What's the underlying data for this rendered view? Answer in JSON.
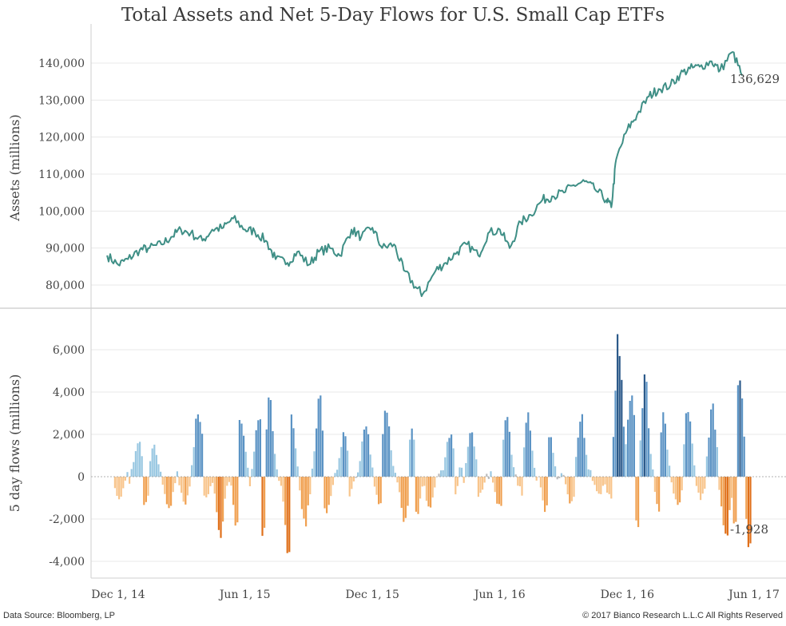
{
  "title": "Total Assets and Net 5-Day Flows for U.S. Small Cap ETFs",
  "source": "Data Source: Bloomberg, LP",
  "copyright": "© 2017 Bianco Research L.L.C  All Rights Reserved",
  "colors": {
    "assets_line": "#3f8f86",
    "inflow_light": "#9ac8e2",
    "inflow_mid": "#5b93c4",
    "inflow_dark": "#2c5a8a",
    "outflow_light": "#f8c58c",
    "outflow_mid": "#f0a050",
    "outflow_dark": "#e0701a",
    "neutral": "#bbbbbb",
    "grid": "#e8e8e8"
  },
  "chart_data": [
    {
      "type": "line",
      "ylabel": "Assets (millions)",
      "ylim": [
        75000,
        146000
      ],
      "yticks": [
        "140,000",
        "130,000",
        "120,000",
        "110,000",
        "100,000",
        "90,000",
        "80,000"
      ],
      "ytick_values": [
        140000,
        130000,
        120000,
        110000,
        100000,
        90000,
        80000
      ],
      "end_label": "136,629",
      "series": [
        {
          "x": [
            "2014-11-15",
            "2014-12-01",
            "2014-12-15",
            "2015-01-01",
            "2015-01-15",
            "2015-02-01",
            "2015-02-15",
            "2015-03-01",
            "2015-03-15",
            "2015-04-01",
            "2015-04-15",
            "2015-05-01",
            "2015-05-15",
            "2015-06-01",
            "2015-06-15",
            "2015-07-01",
            "2015-07-15",
            "2015-08-01",
            "2015-08-15",
            "2015-09-01",
            "2015-09-15",
            "2015-10-01",
            "2015-10-15",
            "2015-11-01",
            "2015-11-15",
            "2015-12-01",
            "2015-12-15",
            "2016-01-01",
            "2016-01-15",
            "2016-02-01",
            "2016-02-11",
            "2016-03-01",
            "2016-03-15",
            "2016-04-01",
            "2016-04-15",
            "2016-05-01",
            "2016-05-15",
            "2016-06-01",
            "2016-06-15",
            "2016-07-01",
            "2016-07-15",
            "2016-08-01",
            "2016-08-15",
            "2016-09-01",
            "2016-09-15",
            "2016-10-01",
            "2016-10-15",
            "2016-11-01",
            "2016-11-08",
            "2016-11-15",
            "2016-12-01",
            "2016-12-15",
            "2017-01-01",
            "2017-01-15",
            "2017-02-01",
            "2017-02-15",
            "2017-03-01",
            "2017-03-15",
            "2017-04-01",
            "2017-04-13",
            "2017-05-01",
            "2017-05-15"
          ],
          "values": [
            88000,
            85500,
            87000,
            89500,
            90000,
            91000,
            93000,
            95000,
            94000,
            92000,
            95000,
            95500,
            98000,
            95000,
            94500,
            92000,
            87000,
            86000,
            89000,
            85500,
            89000,
            90000,
            88000,
            95000,
            93000,
            95500,
            90000,
            91000,
            84000,
            79500,
            77500,
            84000,
            86000,
            89000,
            91000,
            88000,
            94000,
            95000,
            90000,
            97000,
            99000,
            103000,
            104000,
            105000,
            107000,
            108000,
            106000,
            103000,
            101000,
            114000,
            122000,
            126000,
            131000,
            133000,
            134000,
            137000,
            138500,
            139000,
            140500,
            138000,
            143000,
            136629
          ]
        }
      ]
    },
    {
      "type": "bar",
      "ylabel": "5 day flows (millions)",
      "ylim": [
        -4500,
        7000
      ],
      "yticks": [
        "6,000",
        "4,000",
        "2,000",
        "0",
        "-2,000",
        "-4,000"
      ],
      "ytick_values": [
        6000,
        4000,
        2000,
        0,
        -2000,
        -4000
      ],
      "end_label": "-1,928",
      "x_tick_labels": [
        "Dec 1, 14",
        "Jun 1, 15",
        "Dec 1, 15",
        "Jun 1, 16",
        "Dec 1, 16",
        "Jun 1, 17"
      ],
      "x_tick_dates": [
        "2014-12-01",
        "2015-06-01",
        "2015-12-01",
        "2016-06-01",
        "2016-12-01",
        "2017-06-01"
      ],
      "inflow_peaks": {
        "x": [
          "2014-12-28",
          "2015-01-20",
          "2015-03-25",
          "2015-05-25",
          "2015-06-20",
          "2015-07-05",
          "2015-08-05",
          "2015-09-15",
          "2015-10-20",
          "2015-11-20",
          "2015-12-20",
          "2016-01-25",
          "2016-03-20",
          "2016-04-20",
          "2016-06-10",
          "2016-07-10",
          "2016-08-10",
          "2016-09-25",
          "2016-11-18",
          "2016-12-05",
          "2016-12-25",
          "2017-01-20",
          "2017-02-25",
          "2017-04-01",
          "2017-05-10"
        ],
        "values": [
          1700,
          1500,
          3300,
          2700,
          3200,
          3500,
          2700,
          3600,
          2100,
          2600,
          3400,
          2300,
          2100,
          2100,
          2700,
          2700,
          2000,
          2900,
          6600,
          4000,
          4700,
          2700,
          3100,
          3500,
          4300
        ]
      },
      "outflow_troughs": {
        "x": [
          "2014-12-01",
          "2015-01-08",
          "2015-02-10",
          "2015-03-05",
          "2015-04-05",
          "2015-04-25",
          "2015-05-20",
          "2015-06-25",
          "2015-08-01",
          "2015-08-25",
          "2015-09-25",
          "2015-10-25",
          "2015-12-10",
          "2016-01-15",
          "2016-02-01",
          "2016-02-20",
          "2016-03-25",
          "2016-05-01",
          "2016-05-30",
          "2016-07-05",
          "2016-08-05",
          "2016-09-10",
          "2016-10-20",
          "2016-11-05",
          "2016-12-15",
          "2017-01-15",
          "2017-02-10",
          "2017-03-15",
          "2017-04-20",
          "2017-05-05",
          "2017-05-25"
        ],
        "values": [
          -1000,
          -1300,
          -1700,
          -1200,
          -1000,
          -3100,
          -2500,
          -2600,
          -3400,
          -2200,
          -1900,
          -1100,
          -1300,
          -2300,
          -1900,
          -1600,
          -900,
          -900,
          -1500,
          -1000,
          -1600,
          -1200,
          -900,
          -1000,
          -2200,
          -1600,
          -1400,
          -1000,
          -3100,
          -2500,
          -3400
        ]
      }
    }
  ]
}
